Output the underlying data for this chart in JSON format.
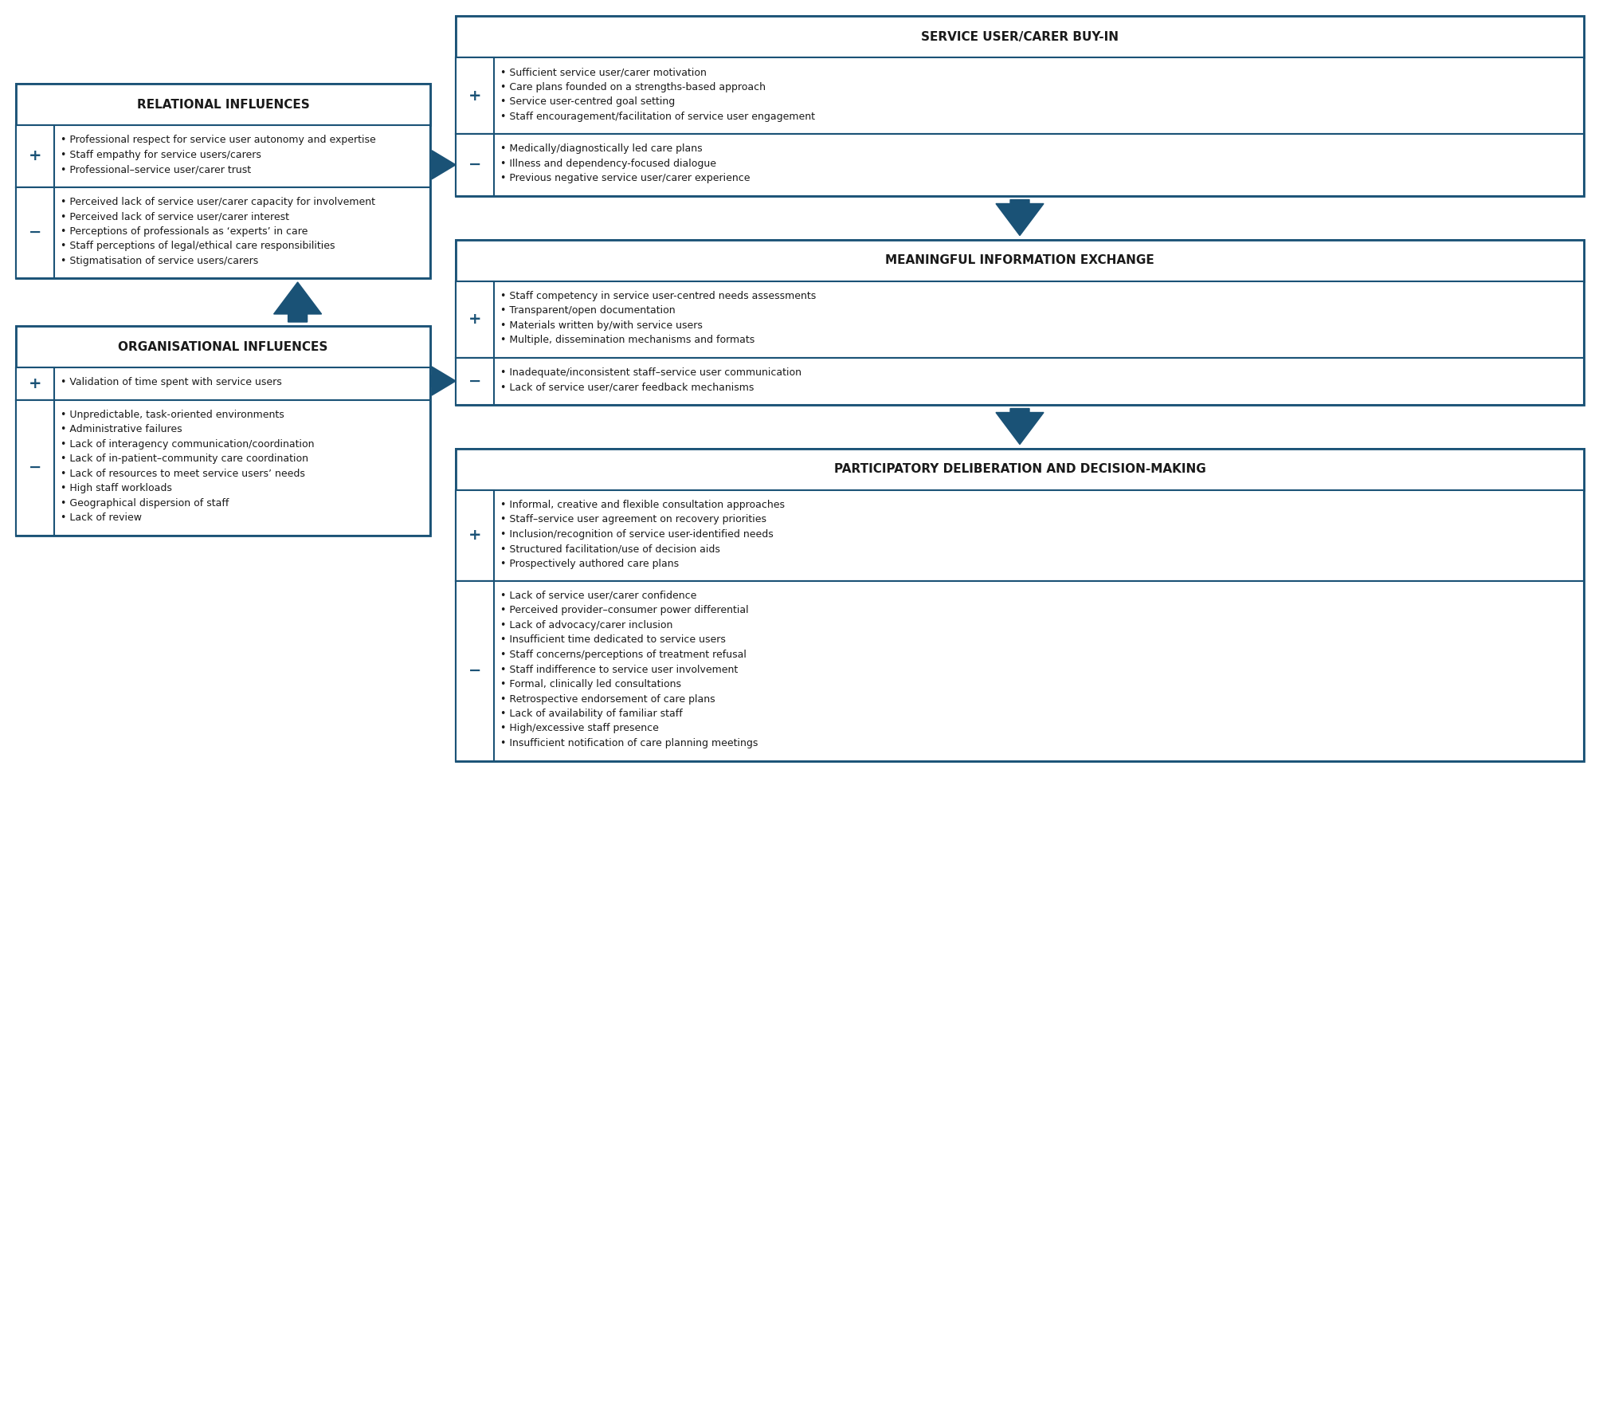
{
  "bg_color": "#ffffff",
  "border_color": "#1a5276",
  "text_color": "#1a1a1a",
  "blue_color": "#1a5276",
  "relational_title": "RELATIONAL INFLUENCES",
  "relational_plus_items": [
    "Professional respect for service user autonomy and expertise",
    "Staff empathy for service users/carers",
    "Professional–service user/carer trust"
  ],
  "relational_minus_items": [
    "Perceived lack of service user/carer capacity for involvement",
    "Perceived lack of service user/carer interest",
    "Perceptions of professionals as ‘experts’ in care",
    "Staff perceptions of legal/ethical care responsibilities",
    "Stigmatisation of service users/carers"
  ],
  "organisational_title": "ORGANISATIONAL INFLUENCES",
  "organisational_plus_items": [
    "Validation of time spent with service users"
  ],
  "organisational_minus_items": [
    "Unpredictable, task-oriented environments",
    "Administrative failures",
    "Lack of interagency communication/coordination",
    "Lack of in-patient–community care coordination",
    "Lack of resources to meet service users’ needs",
    "High staff workloads",
    "Geographical dispersion of staff",
    "Lack of review"
  ],
  "buyin_title": "SERVICE USER/CARER BUY-IN",
  "buyin_plus_items": [
    "Sufficient service user/carer motivation",
    "Care plans founded on a strengths-based approach",
    "Service user-centred goal setting",
    "Staff encouragement/facilitation of service user engagement"
  ],
  "buyin_minus_items": [
    "Medically/diagnostically led care plans",
    "Illness and dependency-focused dialogue",
    "Previous negative service user/carer experience"
  ],
  "info_title": "MEANINGFUL INFORMATION EXCHANGE",
  "info_plus_items": [
    "Staff competency in service user-centred needs assessments",
    "Transparent/open documentation",
    "Materials written by/with service users",
    "Multiple, dissemination mechanisms and formats"
  ],
  "info_minus_items": [
    "Inadequate/inconsistent staff–service user communication",
    "Lack of service user/carer feedback mechanisms"
  ],
  "participatory_title": "PARTICIPATORY DELIBERATION AND DECISION-MAKING",
  "participatory_plus_items": [
    "Informal, creative and flexible consultation approaches",
    "Staff–service user agreement on recovery priorities",
    "Inclusion/recognition of service user-identified needs",
    "Structured facilitation/use of decision aids",
    "Prospectively authored care plans"
  ],
  "participatory_minus_items": [
    "Lack of service user/carer confidence",
    "Perceived provider–consumer power differential",
    "Lack of advocacy/carer inclusion",
    "Insufficient time dedicated to service users",
    "Staff concerns/perceptions of treatment refusal",
    "Staff indifference to service user involvement",
    "Formal, clinically led consultations",
    "Retrospective endorsement of care plans",
    "Lack of availability of familiar staff",
    "High/excessive staff presence",
    "Insufficient notification of care planning meetings"
  ]
}
